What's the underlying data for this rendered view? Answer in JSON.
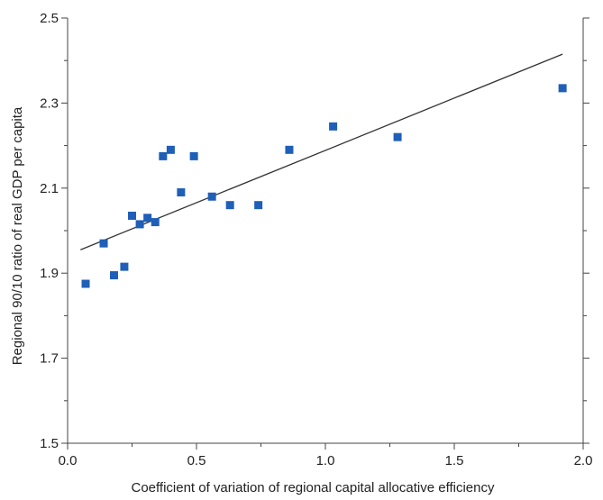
{
  "chart_data": {
    "type": "scatter",
    "title": "",
    "xlabel": "Coefficient of variation of regional capital allocative efficiency",
    "ylabel": "Regional 90/10 ratio of real GDP per capita",
    "xlim": [
      0.0,
      2.0
    ],
    "ylim": [
      1.5,
      2.5
    ],
    "x_ticks": [
      "0.0",
      "0.5",
      "1.0",
      "1.5",
      "2.0"
    ],
    "y_ticks": [
      "1.5",
      "1.7",
      "1.9",
      "2.1",
      "2.3",
      "2.5"
    ],
    "grid": false,
    "legend": "none",
    "colors": {
      "points": "#1f5fb8",
      "trendline": "#333333",
      "axes": "#444444"
    },
    "series": [
      {
        "points": [
          {
            "x": 0.07,
            "y": 1.875
          },
          {
            "x": 0.14,
            "y": 1.97
          },
          {
            "x": 0.18,
            "y": 1.895
          },
          {
            "x": 0.22,
            "y": 1.915
          },
          {
            "x": 0.25,
            "y": 2.035
          },
          {
            "x": 0.28,
            "y": 2.015
          },
          {
            "x": 0.31,
            "y": 2.03
          },
          {
            "x": 0.34,
            "y": 2.02
          },
          {
            "x": 0.37,
            "y": 2.175
          },
          {
            "x": 0.4,
            "y": 2.19
          },
          {
            "x": 0.44,
            "y": 2.09
          },
          {
            "x": 0.49,
            "y": 2.175
          },
          {
            "x": 0.56,
            "y": 2.08
          },
          {
            "x": 0.63,
            "y": 2.06
          },
          {
            "x": 0.74,
            "y": 2.06
          },
          {
            "x": 0.86,
            "y": 2.19
          },
          {
            "x": 1.03,
            "y": 2.245
          },
          {
            "x": 1.28,
            "y": 2.22
          },
          {
            "x": 1.92,
            "y": 2.335
          }
        ]
      }
    ],
    "trendline": {
      "x": [
        0.05,
        1.92
      ],
      "y": [
        1.955,
        2.415
      ]
    }
  }
}
